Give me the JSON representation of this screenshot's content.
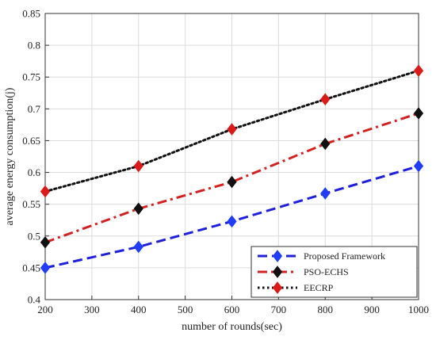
{
  "chart_data": {
    "type": "line",
    "title": "",
    "xlabel": "number of rounds(sec)",
    "ylabel": "average energy consumption(j)",
    "xlim": [
      200,
      1000
    ],
    "ylim": [
      0.4,
      0.85
    ],
    "xticks": [
      200,
      300,
      400,
      500,
      600,
      700,
      800,
      900,
      1000
    ],
    "yticks": [
      0.4,
      0.45,
      0.5,
      0.55,
      0.6,
      0.65,
      0.7,
      0.75,
      0.8,
      0.85
    ],
    "grid": true,
    "legend_position": "bottom-right",
    "x": [
      200,
      400,
      600,
      800,
      1000
    ],
    "series": [
      {
        "name": "Proposed Framework",
        "values": [
          0.45,
          0.483,
          0.523,
          0.567,
          0.61
        ],
        "line_color": "#1f1fe0",
        "marker_color": "#1f3cff",
        "dash": "dash"
      },
      {
        "name": "PSO-ECHS",
        "values": [
          0.49,
          0.543,
          0.585,
          0.645,
          0.693
        ],
        "line_color": "#d42020",
        "marker_color": "#111111",
        "dash": "dashdot"
      },
      {
        "name": "EECRP",
        "values": [
          0.57,
          0.61,
          0.668,
          0.715,
          0.76
        ],
        "line_color": "#111111",
        "marker_color": "#e01818",
        "dash": "dot"
      }
    ]
  }
}
